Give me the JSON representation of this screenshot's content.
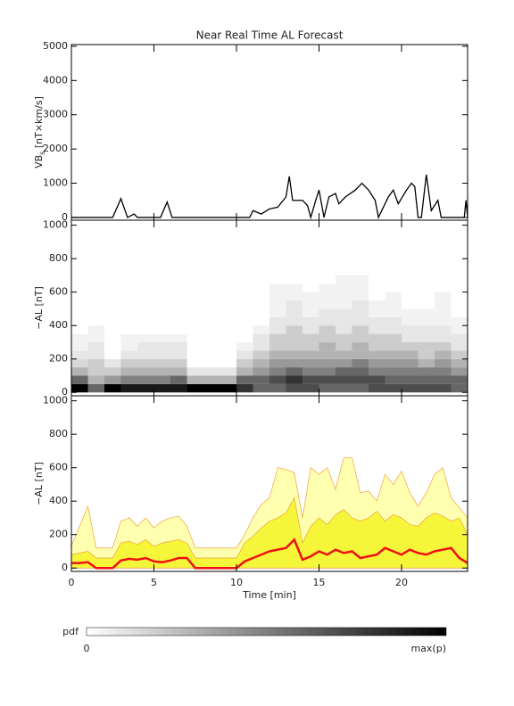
{
  "chart_data": [
    {
      "type": "line",
      "title": "Near Real Time AL Forecast",
      "ylabel": {
        "main": "VB",
        "sub": "s",
        "unit": " [nT×km/s]"
      },
      "xlim": [
        0,
        24
      ],
      "xticks": [
        0,
        5,
        10,
        15,
        20
      ],
      "ylim": [
        -80,
        5050
      ],
      "yticks": [
        0,
        1000,
        2000,
        3000,
        4000,
        5000
      ],
      "x": [
        0,
        2.5,
        3.0,
        3.4,
        3.8,
        4.0,
        5.4,
        5.8,
        6.1,
        10.8,
        11.0,
        11.5,
        12.0,
        12.5,
        13.0,
        13.2,
        13.4,
        14.0,
        14.3,
        14.5,
        14.8,
        15.0,
        15.3,
        15.6,
        16.0,
        16.2,
        16.6,
        17.2,
        17.6,
        18.0,
        18.4,
        18.6,
        19.2,
        19.5,
        19.8,
        20.3,
        20.6,
        20.8,
        21.0,
        21.2,
        21.5,
        21.8,
        22.2,
        22.4,
        23.8,
        23.9,
        24.0
      ],
      "series": [
        {
          "color": "#000000",
          "values": [
            0,
            0,
            550,
            0,
            100,
            0,
            0,
            450,
            0,
            0,
            200,
            100,
            250,
            300,
            600,
            1200,
            500,
            500,
            350,
            0,
            500,
            800,
            0,
            600,
            700,
            400,
            600,
            800,
            1000,
            800,
            500,
            0,
            600,
            800,
            400,
            800,
            1000,
            900,
            0,
            0,
            1250,
            200,
            500,
            0,
            0,
            500,
            0
          ]
        }
      ]
    },
    {
      "type": "heatmap",
      "ylabel": "−AL [nT]",
      "xlim": [
        0,
        24
      ],
      "xticks": [
        0,
        5,
        10,
        15,
        20
      ],
      "ylim": [
        -20,
        1030
      ],
      "yticks": [
        0,
        200,
        400,
        600,
        800,
        1000
      ],
      "x_bins": [
        0,
        1,
        2,
        3,
        4,
        5,
        6,
        7,
        8,
        9,
        10,
        11,
        12,
        13,
        14,
        15,
        16,
        17,
        18,
        19,
        20,
        21,
        22,
        23,
        24
      ],
      "y_bins": [
        0,
        50,
        100,
        150,
        200,
        250,
        300,
        350,
        400,
        450,
        500,
        550,
        600,
        650,
        700
      ],
      "values": [
        [
          1,
          0.6,
          0.3,
          0.15,
          0.1,
          0.05,
          0.05,
          0,
          0,
          0,
          0,
          0,
          0,
          0
        ],
        [
          0.6,
          0.3,
          0.2,
          0.2,
          0.1,
          0.1,
          0.05,
          0.05,
          0,
          0,
          0,
          0,
          0,
          0
        ],
        [
          1,
          0.4,
          0.2,
          0.1,
          0,
          0,
          0,
          0,
          0,
          0,
          0,
          0,
          0,
          0
        ],
        [
          0.9,
          0.5,
          0.3,
          0.2,
          0.1,
          0.05,
          0.05,
          0,
          0,
          0,
          0,
          0,
          0,
          0
        ],
        [
          0.9,
          0.5,
          0.3,
          0.2,
          0.1,
          0.1,
          0.05,
          0,
          0,
          0,
          0,
          0,
          0,
          0
        ],
        [
          0.9,
          0.5,
          0.3,
          0.2,
          0.1,
          0.1,
          0.05,
          0,
          0,
          0,
          0,
          0,
          0,
          0
        ],
        [
          0.9,
          0.6,
          0.3,
          0.2,
          0.1,
          0.1,
          0.05,
          0,
          0,
          0,
          0,
          0,
          0,
          0
        ],
        [
          1,
          0.3,
          0.1,
          0,
          0,
          0,
          0,
          0,
          0,
          0,
          0,
          0,
          0,
          0
        ],
        [
          1,
          0.3,
          0.1,
          0,
          0,
          0,
          0,
          0,
          0,
          0,
          0,
          0,
          0,
          0
        ],
        [
          1,
          0.3,
          0.1,
          0,
          0,
          0,
          0,
          0,
          0,
          0,
          0,
          0,
          0,
          0
        ],
        [
          0.8,
          0.6,
          0.3,
          0.2,
          0.1,
          0.05,
          0,
          0,
          0,
          0,
          0,
          0,
          0,
          0
        ],
        [
          0.6,
          0.6,
          0.4,
          0.3,
          0.2,
          0.1,
          0.1,
          0.05,
          0,
          0,
          0,
          0,
          0,
          0
        ],
        [
          0.6,
          0.7,
          0.5,
          0.4,
          0.3,
          0.2,
          0.2,
          0.1,
          0.1,
          0.05,
          0.05,
          0.05,
          0.05,
          0
        ],
        [
          0.7,
          0.8,
          0.6,
          0.4,
          0.3,
          0.2,
          0.2,
          0.2,
          0.1,
          0.1,
          0.1,
          0.05,
          0.05,
          0
        ],
        [
          0.7,
          0.7,
          0.5,
          0.4,
          0.3,
          0.2,
          0.2,
          0.1,
          0.1,
          0.05,
          0.05,
          0.05,
          0,
          0
        ],
        [
          0.6,
          0.7,
          0.5,
          0.4,
          0.3,
          0.3,
          0.2,
          0.2,
          0.1,
          0.1,
          0.05,
          0.05,
          0.05,
          0
        ],
        [
          0.6,
          0.7,
          0.6,
          0.4,
          0.3,
          0.2,
          0.2,
          0.1,
          0.1,
          0.1,
          0.05,
          0.05,
          0.05,
          0.05
        ],
        [
          0.6,
          0.7,
          0.6,
          0.5,
          0.3,
          0.3,
          0.2,
          0.2,
          0.1,
          0.1,
          0.1,
          0.05,
          0.05,
          0.05
        ],
        [
          0.7,
          0.7,
          0.5,
          0.4,
          0.3,
          0.2,
          0.2,
          0.1,
          0.1,
          0.05,
          0.05,
          0,
          0,
          0
        ],
        [
          0.7,
          0.6,
          0.5,
          0.4,
          0.3,
          0.2,
          0.2,
          0.1,
          0.1,
          0.05,
          0.05,
          0.05,
          0,
          0
        ],
        [
          0.7,
          0.6,
          0.5,
          0.4,
          0.3,
          0.2,
          0.1,
          0.1,
          0.05,
          0.05,
          0,
          0,
          0,
          0
        ],
        [
          0.7,
          0.6,
          0.5,
          0.3,
          0.2,
          0.2,
          0.1,
          0.1,
          0.05,
          0.05,
          0,
          0,
          0,
          0
        ],
        [
          0.7,
          0.6,
          0.5,
          0.4,
          0.3,
          0.2,
          0.1,
          0.1,
          0.05,
          0.05,
          0.05,
          0.05,
          0,
          0
        ],
        [
          0.6,
          0.6,
          0.4,
          0.3,
          0.2,
          0.1,
          0.1,
          0.05,
          0.05,
          0,
          0,
          0,
          0,
          0
        ]
      ]
    },
    {
      "type": "area",
      "ylabel": "−AL [nT]",
      "xlabel": "Time [min]",
      "xlim": [
        0,
        24
      ],
      "xticks": [
        0,
        5,
        10,
        15,
        20
      ],
      "ylim": [
        -20,
        1030
      ],
      "yticks": [
        0,
        200,
        400,
        600,
        800,
        1000
      ],
      "x": [
        0,
        0.5,
        1,
        1.5,
        2,
        2.5,
        3,
        3.5,
        4,
        4.5,
        5,
        5.5,
        6,
        6.5,
        7,
        7.5,
        8,
        8.5,
        9,
        9.5,
        10,
        10.5,
        11,
        11.5,
        12,
        12.5,
        13,
        13.5,
        14,
        14.5,
        15,
        15.5,
        16,
        16.5,
        17,
        17.5,
        18,
        18.5,
        19,
        19.5,
        20,
        20.5,
        21,
        21.5,
        22,
        22.5,
        23,
        23.5,
        24
      ],
      "series": [
        {
          "color": "#ffffb0",
          "line_color": "#f0a040",
          "values": [
            130,
            250,
            370,
            120,
            120,
            120,
            280,
            300,
            250,
            300,
            240,
            280,
            300,
            310,
            250,
            120,
            120,
            120,
            120,
            120,
            120,
            200,
            300,
            380,
            420,
            600,
            590,
            570,
            300,
            600,
            560,
            600,
            470,
            660,
            660,
            450,
            460,
            400,
            560,
            500,
            580,
            450,
            370,
            450,
            560,
            600,
            420,
            360,
            300
          ]
        },
        {
          "color": "#f5f53a",
          "line_color": "#f0a040",
          "values": [
            80,
            90,
            100,
            60,
            60,
            60,
            150,
            160,
            140,
            170,
            130,
            150,
            160,
            170,
            150,
            60,
            60,
            60,
            60,
            60,
            60,
            150,
            190,
            240,
            280,
            300,
            330,
            420,
            150,
            250,
            300,
            260,
            320,
            350,
            300,
            280,
            300,
            340,
            280,
            320,
            300,
            260,
            250,
            300,
            330,
            310,
            280,
            300,
            200
          ]
        },
        {
          "color": "#ee1111",
          "values": [
            30,
            30,
            35,
            0,
            0,
            0,
            45,
            55,
            50,
            60,
            40,
            35,
            45,
            60,
            60,
            0,
            0,
            0,
            0,
            0,
            0,
            40,
            60,
            80,
            100,
            110,
            120,
            170,
            50,
            70,
            100,
            80,
            110,
            90,
            100,
            60,
            70,
            80,
            120,
            100,
            80,
            110,
            90,
            80,
            100,
            110,
            120,
            60,
            30
          ]
        }
      ]
    }
  ],
  "colorbar": {
    "label": "pdf",
    "min_label": "0",
    "max_label": "max(p)"
  }
}
